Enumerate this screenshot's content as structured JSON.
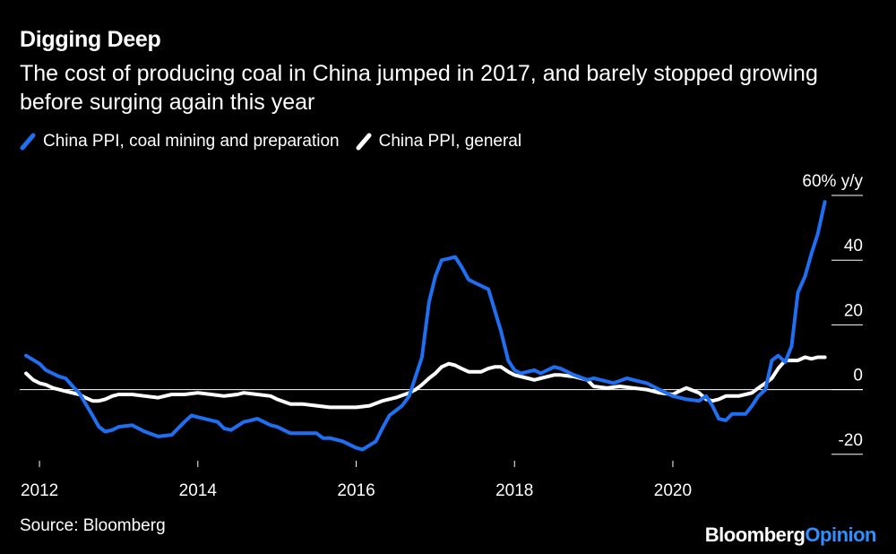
{
  "title": "Digging Deep",
  "subtitle": "The cost of producing coal in China jumped in 2017, and barely stopped growing before surging again this year",
  "source": "Source: Bloomberg",
  "brand": {
    "part1": "Bloomberg",
    "part2": "Opinion"
  },
  "colors": {
    "background": "#000000",
    "coal": "#1f6ff2",
    "general": "#ffffff",
    "brand_accent": "#2f8fff"
  },
  "chart_data": {
    "type": "line",
    "xlim": [
      2011.75,
      2022.4
    ],
    "ylim": [
      -22,
      60
    ],
    "y_ticks": [
      {
        "value": 60,
        "label": "60% y/y"
      },
      {
        "value": 40,
        "label": "40"
      },
      {
        "value": 20,
        "label": "20"
      },
      {
        "value": 0,
        "label": "0"
      },
      {
        "value": -20,
        "label": "-20"
      }
    ],
    "x_ticks": [
      {
        "value": 2012,
        "label": "2012"
      },
      {
        "value": 2014,
        "label": "2014"
      },
      {
        "value": 2016,
        "label": "2016"
      },
      {
        "value": 2018,
        "label": "2018"
      },
      {
        "value": 2020,
        "label": "2020"
      }
    ],
    "zero_line": true,
    "legend_position": "top-left",
    "series": [
      {
        "name": "China PPI, coal mining and preparation",
        "color": "#1f6ff2",
        "points": [
          [
            2011.83,
            10.5
          ],
          [
            2012.0,
            8.0
          ],
          [
            2012.08,
            6.0
          ],
          [
            2012.25,
            4.0
          ],
          [
            2012.33,
            3.5
          ],
          [
            2012.42,
            1.0
          ],
          [
            2012.5,
            -1.0
          ],
          [
            2012.67,
            -8.0
          ],
          [
            2012.75,
            -11.5
          ],
          [
            2012.83,
            -13.0
          ],
          [
            2012.92,
            -12.5
          ],
          [
            2013.0,
            -11.5
          ],
          [
            2013.17,
            -11.0
          ],
          [
            2013.33,
            -13.0
          ],
          [
            2013.5,
            -14.5
          ],
          [
            2013.67,
            -14.0
          ],
          [
            2013.83,
            -10.0
          ],
          [
            2013.92,
            -8.0
          ],
          [
            2014.0,
            -8.5
          ],
          [
            2014.17,
            -9.5
          ],
          [
            2014.25,
            -10.0
          ],
          [
            2014.33,
            -12.0
          ],
          [
            2014.42,
            -12.5
          ],
          [
            2014.58,
            -10.0
          ],
          [
            2014.67,
            -9.5
          ],
          [
            2014.75,
            -9.0
          ],
          [
            2014.92,
            -11.0
          ],
          [
            2015.0,
            -11.5
          ],
          [
            2015.17,
            -13.5
          ],
          [
            2015.33,
            -13.5
          ],
          [
            2015.5,
            -13.5
          ],
          [
            2015.58,
            -15.0
          ],
          [
            2015.67,
            -15.0
          ],
          [
            2015.83,
            -16.0
          ],
          [
            2016.0,
            -18.0
          ],
          [
            2016.08,
            -18.5
          ],
          [
            2016.25,
            -16.0
          ],
          [
            2016.33,
            -12.0
          ],
          [
            2016.42,
            -8.0
          ],
          [
            2016.58,
            -5.0
          ],
          [
            2016.67,
            -2.0
          ],
          [
            2016.83,
            10.0
          ],
          [
            2016.92,
            27.0
          ],
          [
            2017.0,
            35.0
          ],
          [
            2017.08,
            40.0
          ],
          [
            2017.17,
            40.5
          ],
          [
            2017.25,
            41.0
          ],
          [
            2017.33,
            38.0
          ],
          [
            2017.42,
            34.0
          ],
          [
            2017.5,
            33.0
          ],
          [
            2017.67,
            31.0
          ],
          [
            2017.83,
            18.0
          ],
          [
            2017.92,
            9.0
          ],
          [
            2018.0,
            6.0
          ],
          [
            2018.08,
            5.0
          ],
          [
            2018.25,
            6.0
          ],
          [
            2018.33,
            5.0
          ],
          [
            2018.5,
            7.0
          ],
          [
            2018.58,
            6.5
          ],
          [
            2018.75,
            4.5
          ],
          [
            2018.92,
            3.0
          ],
          [
            2019.0,
            3.5
          ],
          [
            2019.17,
            2.5
          ],
          [
            2019.25,
            2.0
          ],
          [
            2019.42,
            3.5
          ],
          [
            2019.58,
            2.5
          ],
          [
            2019.67,
            2.0
          ],
          [
            2019.83,
            0.0
          ],
          [
            2020.0,
            -2.0
          ],
          [
            2020.17,
            -3.0
          ],
          [
            2020.33,
            -3.5
          ],
          [
            2020.42,
            -2.0
          ],
          [
            2020.5,
            -5.0
          ],
          [
            2020.58,
            -9.0
          ],
          [
            2020.67,
            -9.5
          ],
          [
            2020.75,
            -7.5
          ],
          [
            2020.92,
            -7.5
          ],
          [
            2021.0,
            -5.0
          ],
          [
            2021.08,
            -2.0
          ],
          [
            2021.17,
            0.0
          ],
          [
            2021.25,
            9.0
          ],
          [
            2021.33,
            10.5
          ],
          [
            2021.42,
            8.5
          ],
          [
            2021.5,
            13.5
          ],
          [
            2021.58,
            30.0
          ],
          [
            2021.67,
            35.0
          ],
          [
            2021.75,
            42.0
          ],
          [
            2021.83,
            48.0
          ],
          [
            2021.92,
            58.0
          ]
        ]
      },
      {
        "name": "China PPI, general",
        "color": "#ffffff",
        "points": [
          [
            2011.83,
            5.0
          ],
          [
            2011.92,
            3.0
          ],
          [
            2012.0,
            2.0
          ],
          [
            2012.08,
            1.5
          ],
          [
            2012.17,
            0.5
          ],
          [
            2012.33,
            -0.5
          ],
          [
            2012.5,
            -1.5
          ],
          [
            2012.58,
            -2.5
          ],
          [
            2012.67,
            -3.5
          ],
          [
            2012.75,
            -3.5
          ],
          [
            2012.83,
            -3.0
          ],
          [
            2012.92,
            -2.0
          ],
          [
            2013.0,
            -1.5
          ],
          [
            2013.17,
            -1.5
          ],
          [
            2013.33,
            -2.0
          ],
          [
            2013.5,
            -2.5
          ],
          [
            2013.67,
            -1.5
          ],
          [
            2013.83,
            -1.5
          ],
          [
            2014.0,
            -1.0
          ],
          [
            2014.17,
            -1.5
          ],
          [
            2014.33,
            -2.0
          ],
          [
            2014.5,
            -1.5
          ],
          [
            2014.58,
            -1.0
          ],
          [
            2014.75,
            -1.5
          ],
          [
            2014.92,
            -2.0
          ],
          [
            2015.0,
            -3.0
          ],
          [
            2015.17,
            -4.5
          ],
          [
            2015.33,
            -4.5
          ],
          [
            2015.5,
            -5.0
          ],
          [
            2015.67,
            -5.5
          ],
          [
            2015.83,
            -5.5
          ],
          [
            2016.0,
            -5.5
          ],
          [
            2016.17,
            -5.0
          ],
          [
            2016.33,
            -3.5
          ],
          [
            2016.5,
            -2.5
          ],
          [
            2016.67,
            -1.0
          ],
          [
            2016.75,
            0.0
          ],
          [
            2016.83,
            1.5
          ],
          [
            2016.92,
            3.5
          ],
          [
            2017.0,
            5.0
          ],
          [
            2017.08,
            7.0
          ],
          [
            2017.17,
            8.0
          ],
          [
            2017.25,
            7.5
          ],
          [
            2017.33,
            6.5
          ],
          [
            2017.42,
            5.5
          ],
          [
            2017.5,
            5.5
          ],
          [
            2017.58,
            5.5
          ],
          [
            2017.67,
            6.5
          ],
          [
            2017.75,
            7.0
          ],
          [
            2017.83,
            7.0
          ],
          [
            2017.92,
            5.5
          ],
          [
            2018.0,
            4.5
          ],
          [
            2018.17,
            3.5
          ],
          [
            2018.25,
            3.0
          ],
          [
            2018.33,
            3.5
          ],
          [
            2018.5,
            4.5
          ],
          [
            2018.58,
            4.5
          ],
          [
            2018.75,
            4.0
          ],
          [
            2018.92,
            3.0
          ],
          [
            2019.0,
            1.0
          ],
          [
            2019.17,
            0.5
          ],
          [
            2019.33,
            1.0
          ],
          [
            2019.5,
            0.5
          ],
          [
            2019.67,
            0.0
          ],
          [
            2019.83,
            -1.0
          ],
          [
            2020.0,
            -1.5
          ],
          [
            2020.08,
            -0.5
          ],
          [
            2020.17,
            0.5
          ],
          [
            2020.33,
            -1.0
          ],
          [
            2020.42,
            -3.0
          ],
          [
            2020.5,
            -3.5
          ],
          [
            2020.58,
            -3.0
          ],
          [
            2020.67,
            -2.0
          ],
          [
            2020.83,
            -2.0
          ],
          [
            2020.92,
            -1.5
          ],
          [
            2021.0,
            -1.0
          ],
          [
            2021.08,
            0.5
          ],
          [
            2021.17,
            2.0
          ],
          [
            2021.25,
            3.5
          ],
          [
            2021.33,
            6.5
          ],
          [
            2021.42,
            9.0
          ],
          [
            2021.5,
            9.0
          ],
          [
            2021.58,
            9.0
          ],
          [
            2021.67,
            10.0
          ],
          [
            2021.75,
            9.5
          ],
          [
            2021.83,
            10.0
          ],
          [
            2021.92,
            10.0
          ]
        ]
      }
    ]
  }
}
